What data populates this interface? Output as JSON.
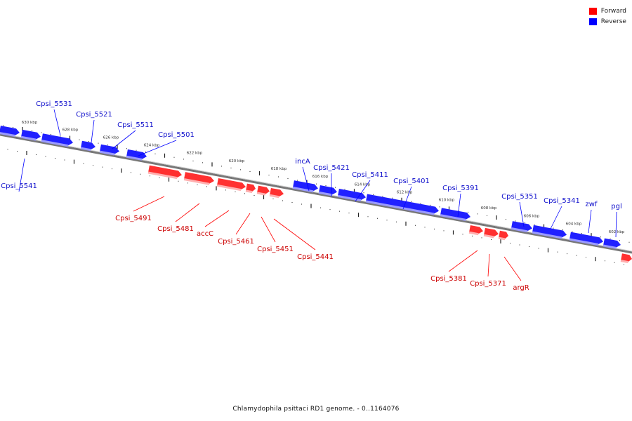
{
  "legend": {
    "forward_label": "Forward",
    "reverse_label": "Reverse",
    "forward_color": "#ff0000",
    "reverse_color": "#0000ff"
  },
  "caption": "Chlamydophila psittaci RD1 genome. - 0..1164076",
  "kbp_ticks": [
    "630 kbp",
    "628 kbp",
    "626 kbp",
    "624 kbp",
    "622 kbp",
    "620 kbp",
    "618 kbp",
    "616 kbp",
    "614 kbp",
    "612 kbp",
    "610 kbp",
    "608 kbp",
    "606 kbp",
    "604 kbp",
    "602 kbp"
  ],
  "genes": {
    "reverse": [
      "Cpsi_5541",
      "Cpsi_5531",
      "Cpsi_5521",
      "Cpsi_5511",
      "Cpsi_5501",
      "incA",
      "Cpsi_5421",
      "Cpsi_5411",
      "Cpsi_5401",
      "Cpsi_5391",
      "Cpsi_5351",
      "Cpsi_5341",
      "zwf",
      "pgl"
    ],
    "forward": [
      "Cpsi_5491",
      "Cpsi_5481",
      "accC",
      "Cpsi_5461",
      "Cpsi_5451",
      "Cpsi_5441",
      "Cpsi_5381",
      "Cpsi_5371",
      "argR"
    ]
  }
}
